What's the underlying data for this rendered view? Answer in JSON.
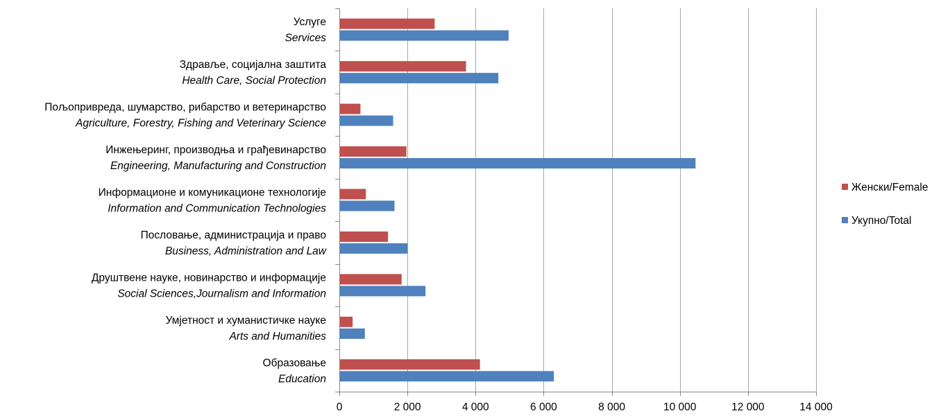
{
  "chart_data": {
    "type": "bar",
    "orientation": "horizontal",
    "title": "",
    "xlabel": "",
    "ylabel": "",
    "xlim": [
      0,
      14000
    ],
    "xticks": [
      0,
      2000,
      4000,
      6000,
      8000,
      10000,
      12000,
      14000
    ],
    "xtick_labels": [
      "0",
      "2 000",
      "4 000",
      "6 000",
      "8 000",
      "10 000",
      "12 000",
      "14 000"
    ],
    "grid": true,
    "legend_position": "right",
    "categories": [
      {
        "line1": "Услуге",
        "line2": "Services"
      },
      {
        "line1": "Здравље, социјална заштита",
        "line2": "Health Care, Social Protection"
      },
      {
        "line1": "Пољопривреда, шумарство, рибарство и ветеринарство",
        "line2": "Agriculture, Forestry, Fishing and Veterinary Science"
      },
      {
        "line1": "Инжењеринг, производња и грађевинарство",
        "line2": "Engineering, Manufacturing and Construction"
      },
      {
        "line1": "Информационе и комуникационе технологије",
        "line2": "Information and Communication Technologies"
      },
      {
        "line1": "Пословање, администрација и право",
        "line2": "Business, Administration and Law"
      },
      {
        "line1": "Друштвене науке, новинарство и информације",
        "line2": "Social Sciences,Journalism and Information"
      },
      {
        "line1": "Умјетност и хуманистичке науке",
        "line2": "Arts and Humanities"
      },
      {
        "line1": "Образовање",
        "line2": "Education"
      }
    ],
    "series": [
      {
        "name": "Женски/Female",
        "color": "#C0504D",
        "values": [
          2800,
          3720,
          620,
          1970,
          780,
          1430,
          1830,
          390,
          4130
        ]
      },
      {
        "name": "Укупно/Total",
        "color": "#4F81BD",
        "values": [
          4970,
          4670,
          1580,
          10460,
          1620,
          2000,
          2530,
          750,
          6300
        ]
      }
    ]
  }
}
